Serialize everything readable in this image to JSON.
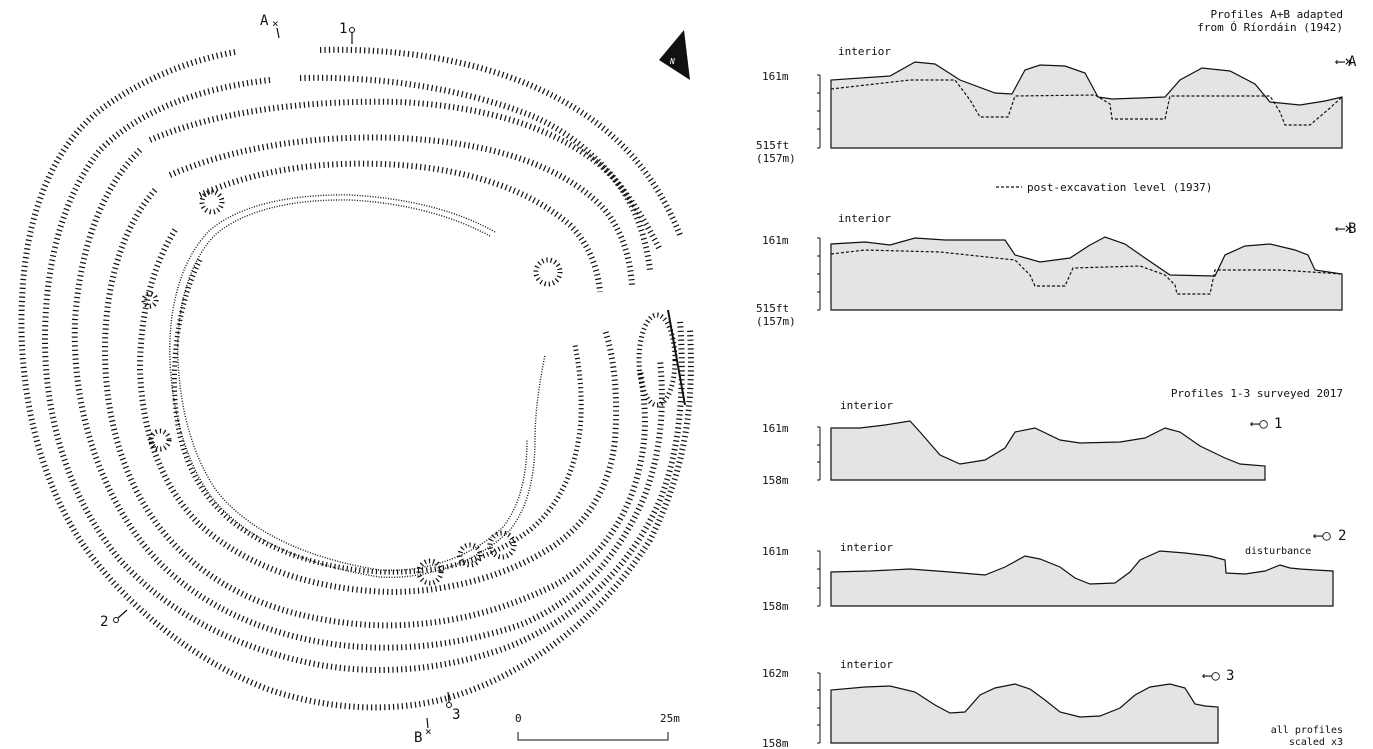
{
  "plan": {
    "markers": {
      "A": "A",
      "B": "B",
      "p1": "1",
      "p2": "2",
      "p3": "3"
    },
    "north_label": "N",
    "scale": {
      "start": "0",
      "end": "25m"
    }
  },
  "profiles": {
    "ab_caption_line1": "Profiles A+B adapted",
    "ab_caption_line2": "from Ó Ríordáin (1942)",
    "legend_dashed": "post-excavation level (1937)",
    "survey_caption": "Profiles 1-3 surveyed 2017",
    "scale_note_line1": "all profiles",
    "scale_note_line2": "scaled x3",
    "items": [
      {
        "id": "A",
        "end_label": "A",
        "interior": "interior",
        "top": "161m",
        "bottom": "515ft",
        "bottom2": "(157m)"
      },
      {
        "id": "B",
        "end_label": "B",
        "interior": "interior",
        "top": "161m",
        "bottom": "515ft",
        "bottom2": "(157m)"
      },
      {
        "id": "1",
        "end_label": "1",
        "interior": "interior",
        "top": "161m",
        "bottom": "158m"
      },
      {
        "id": "2",
        "end_label": "2",
        "interior": "interior",
        "top": "161m",
        "bottom": "158m",
        "note": "disturbance"
      },
      {
        "id": "3",
        "end_label": "3",
        "interior": "interior",
        "top": "162m",
        "bottom": "158m"
      }
    ]
  },
  "colors": {
    "profile_fill": "#e4e4e4",
    "ink": "#111111"
  }
}
